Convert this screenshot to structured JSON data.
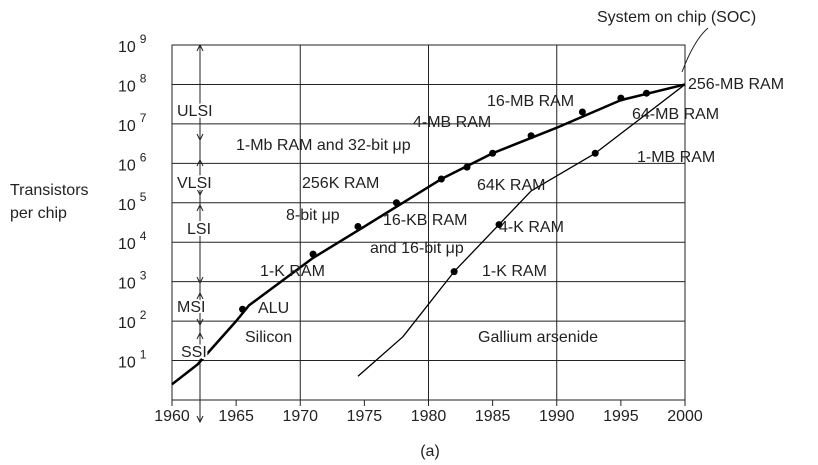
{
  "chart_data": {
    "type": "line",
    "y_label": [
      "Transistors",
      "per chip"
    ],
    "x_label": "(a)",
    "xlim": [
      1960,
      2000
    ],
    "xticks": [
      1960,
      1965,
      1970,
      1975,
      1980,
      1985,
      1990,
      1995,
      2000
    ],
    "ylim": [
      1,
      1000000000
    ],
    "log_y": true,
    "grid": true,
    "yticks": [
      {
        "value": 10,
        "label": "10^1"
      },
      {
        "value": 100,
        "label": "10^2"
      },
      {
        "value": 1000,
        "label": "10^3"
      },
      {
        "value": 10000,
        "label": "10^4"
      },
      {
        "value": 100000,
        "label": "10^5"
      },
      {
        "value": 1000000,
        "label": "10^6"
      },
      {
        "value": 10000000,
        "label": "10^7"
      },
      {
        "value": 100000000,
        "label": "10^8"
      },
      {
        "value": 1000000000,
        "label": "10^9"
      }
    ],
    "series": [
      {
        "color": "#000000",
        "width": 2.5,
        "x": [
          1960,
          1962,
          1965,
          1966,
          1971,
          1975,
          1978,
          1981,
          1985,
          1990,
          1995,
          2000
        ],
        "values": [
          2.5,
          8,
          100,
          250,
          4000,
          25000,
          100000,
          400000,
          1800000,
          8000000,
          40000000,
          100000000
        ],
        "dots": {
          "x": [
            1965.5,
            1971,
            1974.5,
            1977.5,
            1981,
            1983,
            1985,
            1988,
            1992,
            1995,
            1997
          ],
          "values": [
            200,
            5000,
            25000,
            100000,
            400000,
            800000,
            1800000,
            5000000,
            20000000,
            45000000,
            60000000
          ]
        }
      },
      {
        "color": "#000000",
        "width": 1.3,
        "x": [
          1974.5,
          1978,
          1982,
          1985.5,
          1988,
          1993,
          2000
        ],
        "values": [
          4,
          40,
          1800,
          28000,
          200000,
          1800000,
          100000000
        ],
        "dots": {
          "x": [
            1982,
            1985.5,
            1993
          ],
          "values": [
            1800,
            28000,
            1800000
          ]
        }
      }
    ],
    "annotations": [
      "System on chip (SOC)",
      "256-MB RAM",
      "16-MB RAM",
      "4-MB RAM",
      "64-MB RAM",
      "1-Mb RAM and 32-bit μp",
      "1-MB RAM",
      "256K RAM",
      "64K RAM",
      "8-bit μp",
      "16-KB RAM",
      "and 16-bit μp",
      "4-K RAM",
      "1-K RAM",
      "1-K RAM",
      "ALU",
      "Silicon",
      "Gallium arsenide",
      "ULSI",
      "VLSI",
      "LSI",
      "MSI",
      "SSI"
    ]
  }
}
